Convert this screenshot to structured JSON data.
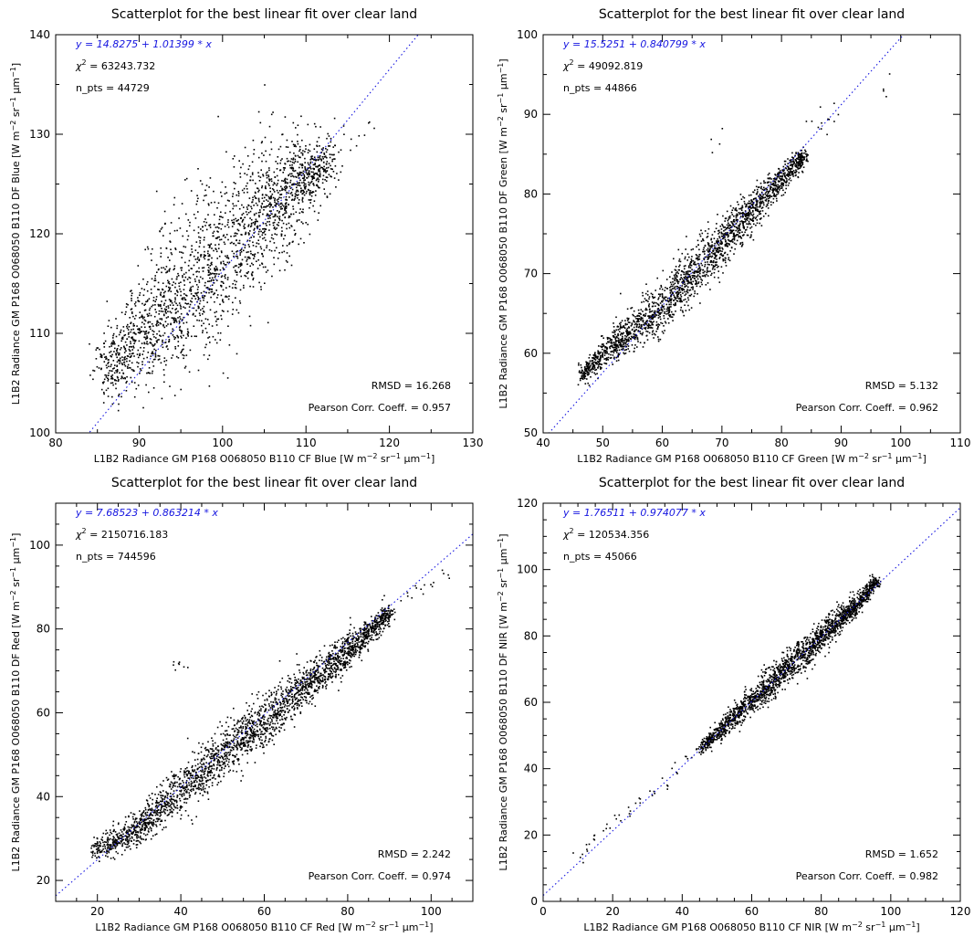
{
  "chart_data": [
    {
      "type": "scatter",
      "title": "Scatterplot for the best linear fit over clear land",
      "xlabel": "L1B2 Radiance GM P168 O068050 B110 CF Blue [W m$^{-2}$ sr$^{-1}$ μm$^{-1}$]",
      "ylabel": "L1B2 Radiance GM P168 O068050 B110 DF Blue [W m$^{-2}$ sr$^{-1}$ μm$^{-1}$]",
      "xlabel_parts": {
        "pre": "L1B2 Radiance GM P168 O068050 B110 CF Blue [W m",
        "sup1": "−2",
        "mid": " sr",
        "sup2": "−1",
        "unit": " μm",
        "sup3": "−1",
        "end": "]"
      },
      "ylabel_parts": {
        "pre": "L1B2 Radiance GM P168 O068050 B110 DF Blue [W m",
        "sup1": "−2",
        "mid": " sr",
        "sup2": "−1",
        "unit": " μm",
        "sup3": "−1",
        "end": "]"
      },
      "xlim": [
        80,
        130
      ],
      "ylim": [
        100,
        140
      ],
      "xticks": [
        80,
        90,
        100,
        110,
        120,
        130
      ],
      "yticks": [
        100,
        110,
        120,
        130,
        140
      ],
      "xminor": 2,
      "yminor": 2,
      "fit": {
        "intercept": 14.8275,
        "slope": 1.01399,
        "text": "y = 14.8275 + 1.01399 * x",
        "color": "#1515e0"
      },
      "chi2_label": "χ",
      "chi2_sup": "2",
      "chi2_value": " = 63243.732",
      "npts": "n_pts = 44729",
      "rmsd": "RMSD = 16.268",
      "pearson": "Pearson Corr. Coeff. = 0.957",
      "cloud": {
        "x_range": [
          85.5,
          112.5
        ],
        "width": 4.2,
        "skew": 0.35,
        "count": 2200,
        "sparse_tail": [
          [
            112,
            128
          ],
          [
            114,
            130
          ],
          [
            116,
            130
          ],
          [
            118,
            130
          ],
          [
            109,
            132
          ],
          [
            111,
            126
          ]
        ]
      },
      "x_sample": [
        86,
        88,
        90,
        95,
        100,
        105,
        110,
        112
      ],
      "y_sample": [
        106.5,
        108,
        110,
        114,
        118,
        122.5,
        125.5,
        127
      ]
    },
    {
      "type": "scatter",
      "title": "Scatterplot for the best linear fit over clear land",
      "xlabel_parts": {
        "pre": "L1B2 Radiance GM P168 O068050 B110 CF Green [W m",
        "sup1": "−2",
        "mid": " sr",
        "sup2": "−1",
        "unit": " μm",
        "sup3": "−1",
        "end": "]"
      },
      "ylabel_parts": {
        "pre": "L1B2 Radiance GM P168 O068050 B110 DF Green [W m",
        "sup1": "−2",
        "mid": " sr",
        "sup2": "−1",
        "unit": " μm",
        "sup3": "−1",
        "end": "]"
      },
      "xlim": [
        40,
        110
      ],
      "ylim": [
        50,
        100
      ],
      "xticks": [
        40,
        50,
        60,
        70,
        80,
        90,
        100,
        110
      ],
      "yticks": [
        50,
        60,
        70,
        80,
        90,
        100
      ],
      "xminor": 2,
      "yminor": 2,
      "fit": {
        "intercept": 15.5251,
        "slope": 0.840799,
        "text": "y = 15.5251 + 0.840799 * x",
        "color": "#1515e0"
      },
      "chi2_label": "χ",
      "chi2_sup": "2",
      "chi2_value": " = 49092.819",
      "npts": "n_pts = 44866",
      "rmsd": "RMSD = 5.132",
      "pearson": "Pearson Corr. Coeff. = 0.962",
      "cloud": {
        "x_range": [
          46,
          84
        ],
        "width": 1.8,
        "skew": 0.2,
        "count": 2200,
        "sparse_tail": [
          [
            85,
            89
          ],
          [
            87,
            90
          ],
          [
            89,
            90
          ],
          [
            97,
            93
          ],
          [
            68,
            86
          ]
        ]
      },
      "x_sample": [
        46,
        50,
        55,
        60,
        65,
        70,
        75,
        80,
        84
      ],
      "y_sample": [
        57,
        60,
        63,
        66,
        70,
        74,
        78,
        82,
        85
      ]
    },
    {
      "type": "scatter",
      "title": "Scatterplot for the best linear fit over clear land",
      "xlabel_parts": {
        "pre": "L1B2 Radiance GM P168 O068050 B110 CF Red [W m",
        "sup1": "−2",
        "mid": " sr",
        "sup2": "−1",
        "unit": " μm",
        "sup3": "−1",
        "end": "]"
      },
      "ylabel_parts": {
        "pre": "L1B2 Radiance GM P168 O068050 B110 DF Red [W m",
        "sup1": "−2",
        "mid": " sr",
        "sup2": "−1",
        "unit": " μm",
        "sup3": "−1",
        "end": "]"
      },
      "xlim": [
        10,
        110
      ],
      "ylim": [
        15,
        110
      ],
      "xticks": [
        20,
        40,
        60,
        80,
        100
      ],
      "yticks": [
        20,
        40,
        60,
        80,
        100
      ],
      "xminor": 4,
      "yminor": 4,
      "fit": {
        "intercept": 7.68523,
        "slope": 0.863214,
        "text": "y = 7.68523 + 0.863214 * x",
        "color": "#1515e0"
      },
      "chi2_label": "χ",
      "chi2_sup": "2",
      "chi2_value": " = 2150716.183",
      "npts": "n_pts = 744596",
      "rmsd": "RMSD = 2.242",
      "pearson": "Pearson Corr. Coeff. = 0.974",
      "cloud": {
        "x_range": [
          19,
          90
        ],
        "width": 3.2,
        "skew": 0.1,
        "count": 2600,
        "sparse_tail": [
          [
            90,
            86
          ],
          [
            94,
            88
          ],
          [
            97,
            90
          ],
          [
            100,
            91
          ],
          [
            103,
            93
          ],
          [
            38,
            72
          ],
          [
            40,
            71
          ]
        ]
      },
      "x_sample": [
        19,
        30,
        40,
        50,
        60,
        70,
        80,
        90
      ],
      "y_sample": [
        26.5,
        33,
        42,
        50,
        58,
        67,
        75,
        84
      ]
    },
    {
      "type": "scatter",
      "title": "Scatterplot for the best linear fit over clear land",
      "xlabel_parts": {
        "pre": "L1B2 Radiance GM P168 O068050 B110 CF NIR [W m",
        "sup1": "−2",
        "mid": " sr",
        "sup2": "−1",
        "unit": " μm",
        "sup3": "−1",
        "end": "]"
      },
      "ylabel_parts": {
        "pre": "L1B2 Radiance GM P168 O068050 B110 DF NIR [W m",
        "sup1": "−2",
        "mid": " sr",
        "sup2": "−1",
        "unit": " μm",
        "sup3": "−1",
        "end": "]"
      },
      "xlim": [
        0,
        120
      ],
      "ylim": [
        0,
        120
      ],
      "xticks": [
        0,
        20,
        40,
        60,
        80,
        100,
        120
      ],
      "yticks": [
        0,
        20,
        40,
        60,
        80,
        100,
        120
      ],
      "xminor": 4,
      "yminor": 4,
      "fit": {
        "intercept": 1.76511,
        "slope": 0.974077,
        "text": "y = 1.76511 + 0.974077 * x",
        "color": "#1515e0"
      },
      "chi2_label": "χ",
      "chi2_sup": "2",
      "chi2_value": " = 120534.356",
      "npts": "n_pts = 45066",
      "rmsd": "RMSD = 1.652",
      "pearson": "Pearson Corr. Coeff. = 0.982",
      "cloud": {
        "x_range": [
          45,
          96
        ],
        "width": 2.6,
        "skew": 0.15,
        "count": 2000,
        "sparse_tail": [
          [
            10,
            14
          ],
          [
            12,
            17
          ],
          [
            15,
            20
          ],
          [
            18,
            22
          ],
          [
            22,
            25
          ],
          [
            25,
            27
          ],
          [
            28,
            30
          ],
          [
            31,
            33
          ],
          [
            35,
            36
          ],
          [
            38,
            41
          ],
          [
            41,
            43
          ]
        ]
      },
      "x_sample": [
        9,
        20,
        30,
        45,
        60,
        75,
        90,
        96
      ],
      "y_sample": [
        13,
        22,
        31,
        46,
        61,
        75,
        90,
        97
      ]
    }
  ]
}
